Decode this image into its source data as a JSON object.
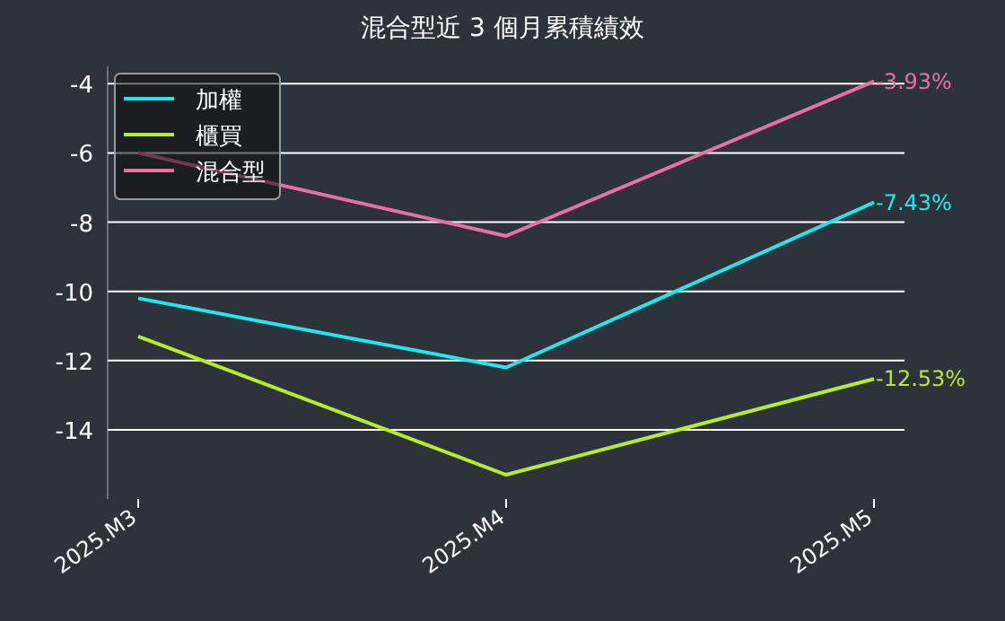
{
  "chart_data": {
    "type": "line",
    "title": "混合型近 3 個月累積績效",
    "categories": [
      "2025.M3",
      "2025.M4",
      "2025.M5"
    ],
    "series": [
      {
        "name": "加權",
        "color": "#22e8ee",
        "values": [
          -10.2,
          -12.2,
          -7.43
        ],
        "value_labels": [
          null,
          null,
          "-7.43%"
        ]
      },
      {
        "name": "櫃買",
        "color": "#b6ec2e",
        "values": [
          -11.3,
          -15.3,
          -12.53
        ],
        "value_labels": [
          null,
          null,
          "-12.53%"
        ]
      },
      {
        "name": "混合型",
        "color": "#e9709f",
        "values": [
          -6.0,
          -8.4,
          -3.93
        ],
        "value_labels": [
          null,
          null,
          "-3.93%"
        ]
      }
    ],
    "ylim": [
      -16,
      -3.5
    ],
    "yticks": [
      -14,
      -12,
      -10,
      -8,
      -6,
      -4
    ],
    "grid": "y",
    "legend": "top left",
    "marker": "none",
    "line_style": "solid"
  }
}
